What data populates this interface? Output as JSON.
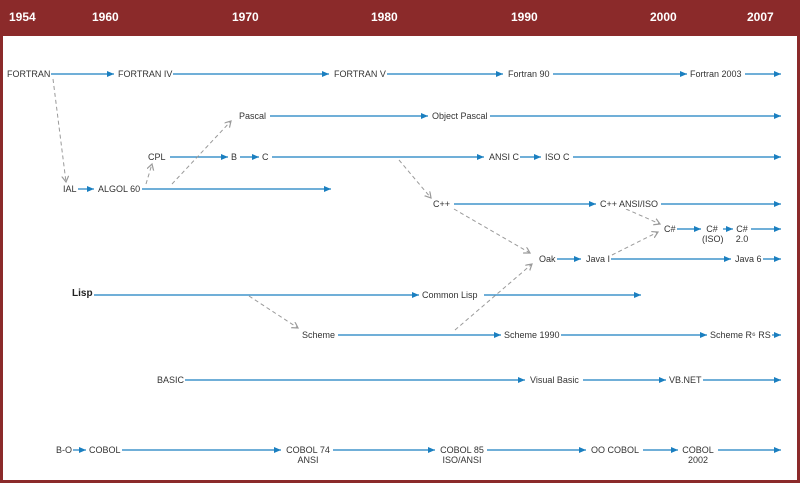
{
  "colors": {
    "frame": "#8b2a2a",
    "solid_arrow": "#1a7fc0",
    "dashed_arrow": "#9a9a9a"
  },
  "years": [
    "1954",
    "1960",
    "1970",
    "1980",
    "1990",
    "2000",
    "2007"
  ],
  "nodes": {
    "fortran": "FORTRAN",
    "fortran_iv": "FORTRAN IV",
    "fortran_v": "FORTRAN V",
    "fortran_90": "Fortran 90",
    "fortran_2003": "Fortran 2003",
    "pascal": "Pascal",
    "object_pascal": "Object Pascal",
    "cpl": "CPL",
    "b": "B",
    "c": "C",
    "ansi_c": "ANSI C",
    "iso_c": "ISO C",
    "ial": "IAL",
    "algol_60": "ALGOL 60",
    "cpp": "C++",
    "cpp_ansi_iso": "C++ ANSI/ISO",
    "csharp": "C#",
    "csharp_iso_1": "C#",
    "csharp_iso_2": "(ISO)",
    "csharp_20_1": "C#",
    "csharp_20_2": "2.0",
    "oak": "Oak",
    "java_1": "Java I",
    "java_6": "Java 6",
    "lisp": "Lisp",
    "common_lisp": "Common Lisp",
    "scheme": "Scheme",
    "scheme_1990": "Scheme 1990",
    "scheme_r6rs": "Scheme R⁶ RS",
    "basic": "BASIC",
    "visual_basic": "Visual Basic",
    "vb_net": "VB.NET",
    "b_o": "B-O",
    "cobol": "COBOL",
    "cobol_74_1": "COBOL 74",
    "cobol_74_2": "ANSI",
    "cobol_85_1": "COBOL 85",
    "cobol_85_2": "ISO/ANSI",
    "oo_cobol": "OO COBOL",
    "cobol_2002_1": "COBOL",
    "cobol_2002_2": "2002"
  }
}
